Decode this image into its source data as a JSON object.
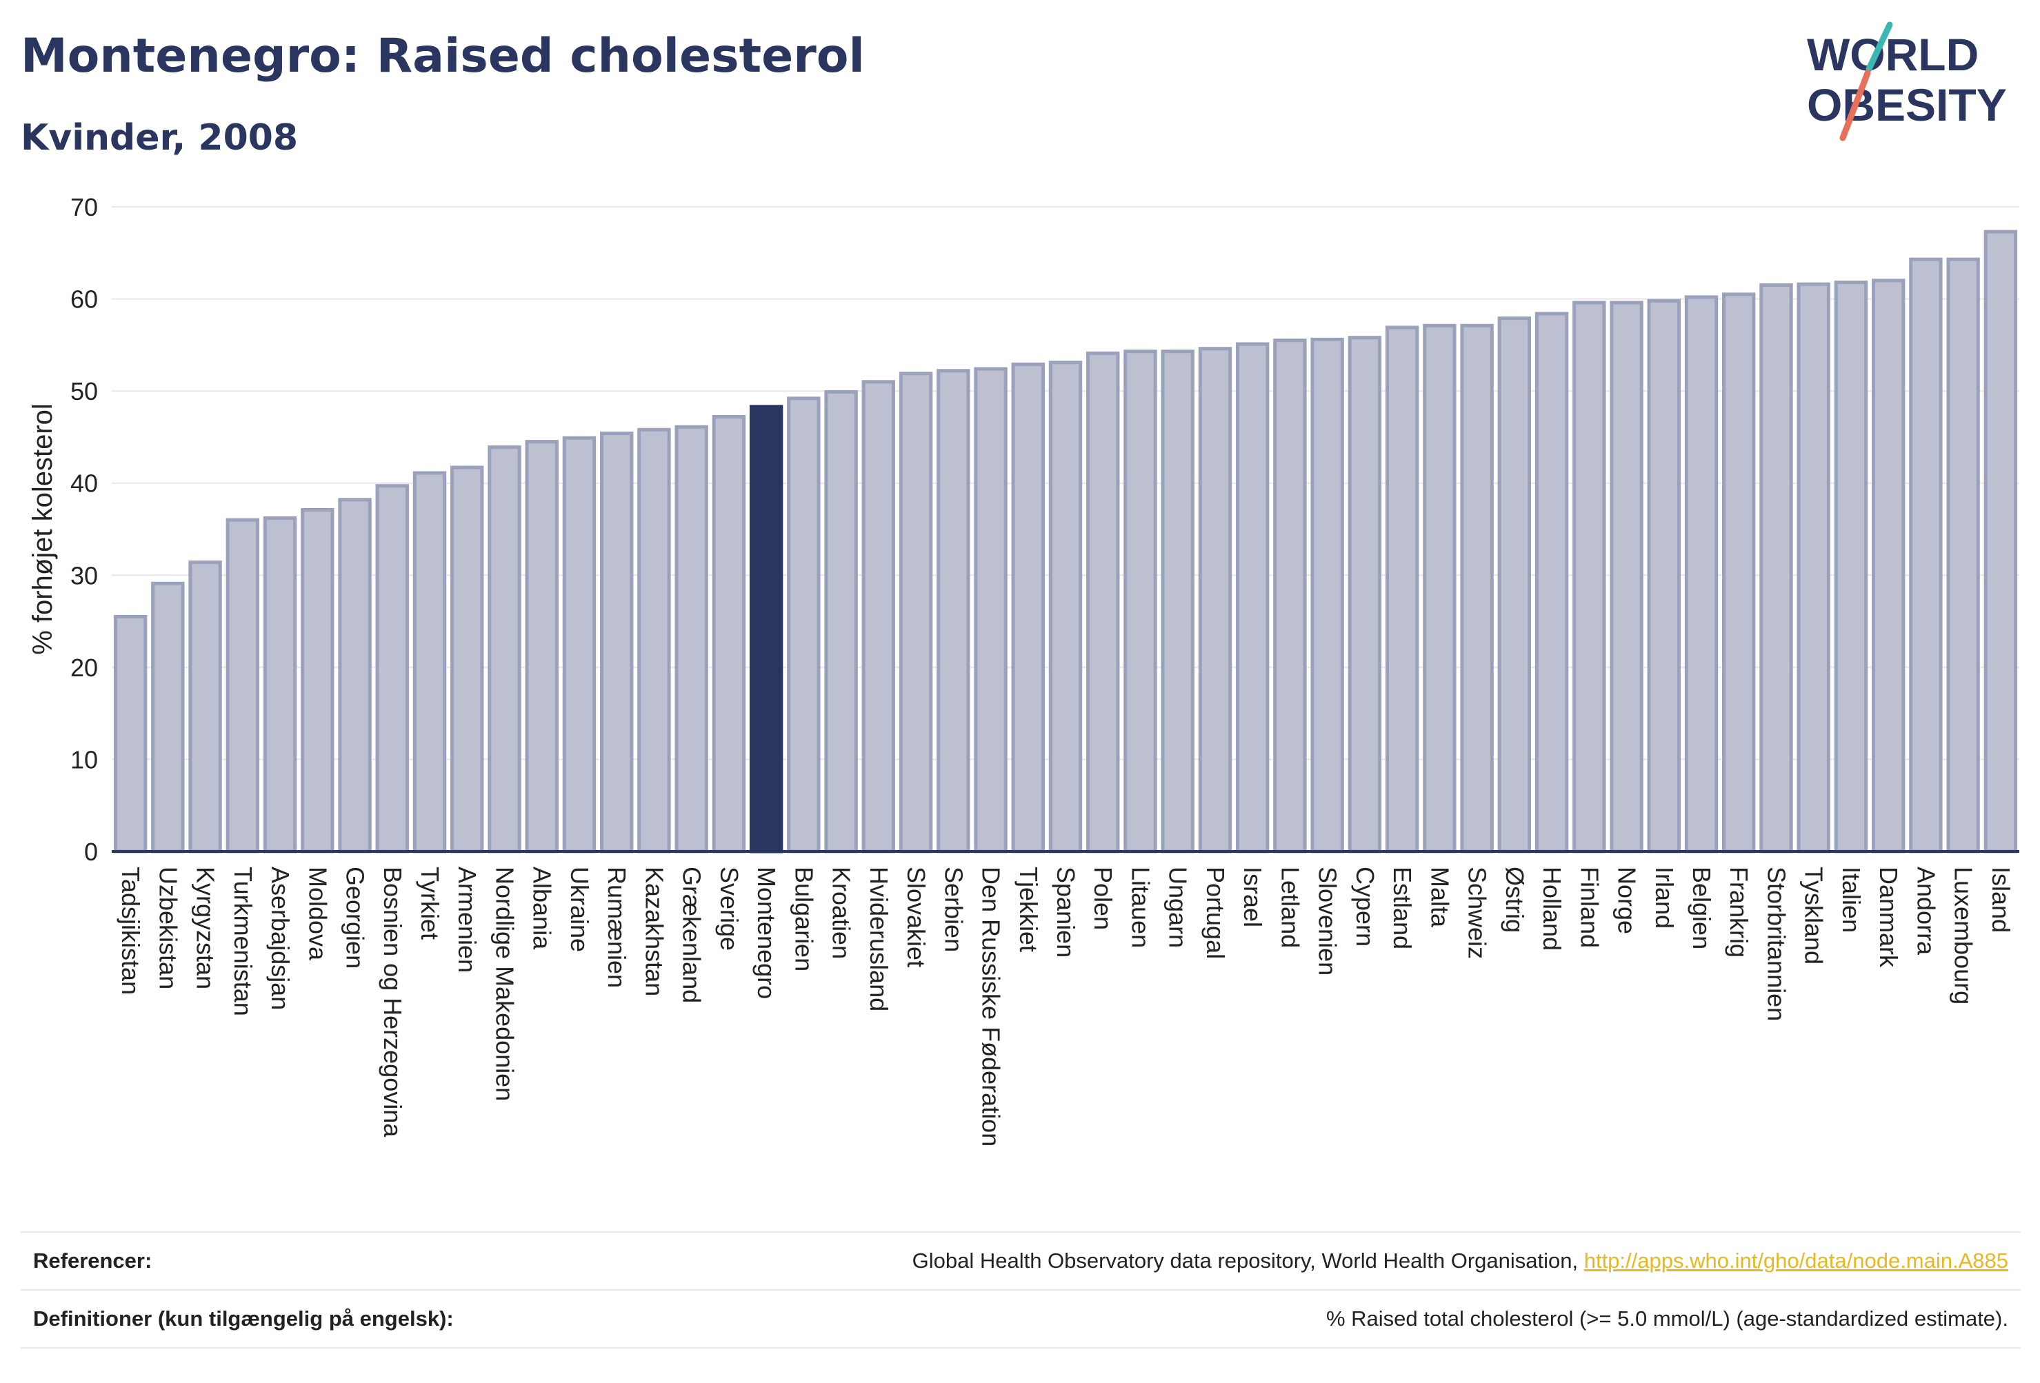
{
  "title": "Montenegro: Raised cholesterol",
  "subtitle": "Kvinder, 2008",
  "logo": {
    "line1": "WORLD",
    "line2": "OBESITY",
    "accent_colors": [
      "#3ab7b1",
      "#e8705a"
    ]
  },
  "colors": {
    "bar": "#bcc0d0",
    "bar_edge": "#9aa1bb",
    "highlight": "#2a3560",
    "text": "#222222",
    "grid": "#e6e6ec"
  },
  "chart_data": {
    "type": "bar",
    "ylabel": "% forhøjet kolesterol",
    "ylim": [
      0,
      70
    ],
    "yticks": [
      0,
      10,
      20,
      30,
      40,
      50,
      60,
      70
    ],
    "grid": true,
    "highlight": "Montenegro",
    "categories": [
      "Tadsjikistan",
      "Uzbekistan",
      "Kyrgyzstan",
      "Turkmenistan",
      "Aserbajdsjan",
      "Moldova",
      "Georgien",
      "Bosnien og Herzegovina",
      "Tyrkiet",
      "Armenien",
      "Nordlige Makedonien",
      "Albania",
      "Ukraine",
      "Rumænien",
      "Kazakhstan",
      "Grækenland",
      "Sverige",
      "Montenegro",
      "Bulgarien",
      "Kroatien",
      "Hviderusland",
      "Slovakiet",
      "Serbien",
      "Den Russiske Føderation",
      "Tjekkiet",
      "Spanien",
      "Polen",
      "Litauen",
      "Ungarn",
      "Portugal",
      "Israel",
      "Letland",
      "Slovenien",
      "Cypern",
      "Estland",
      "Malta",
      "Schweiz",
      "Østrig",
      "Holland",
      "Finland",
      "Norge",
      "Irland",
      "Belgien",
      "Frankrig",
      "Storbritannien",
      "Tyskland",
      "Italien",
      "Danmark",
      "Andorra",
      "Luxembourg",
      "Island"
    ],
    "values": [
      25.5,
      29.1,
      31.4,
      36.0,
      36.2,
      37.1,
      38.2,
      39.7,
      41.1,
      41.7,
      43.9,
      44.5,
      44.9,
      45.4,
      45.8,
      46.1,
      47.2,
      48.3,
      49.2,
      49.9,
      51.0,
      51.9,
      52.2,
      52.4,
      52.9,
      53.1,
      54.1,
      54.3,
      54.3,
      54.6,
      55.1,
      55.5,
      55.6,
      55.8,
      56.9,
      57.1,
      57.1,
      57.9,
      58.4,
      59.6,
      59.6,
      59.8,
      60.2,
      60.5,
      61.5,
      61.6,
      61.8,
      62.0,
      64.3,
      64.3,
      67.3
    ]
  },
  "footer": {
    "references_label": "Referencer:",
    "references_text": "Global Health Observatory data repository, World Health Organisation,",
    "references_link": "http://apps.who.int/gho/data/node.main.A885",
    "definitions_label": "Definitioner (kun tilgængelig på engelsk):",
    "definitions_text": "% Raised total cholesterol (>= 5.0 mmol/L) (age-standardized estimate)."
  }
}
